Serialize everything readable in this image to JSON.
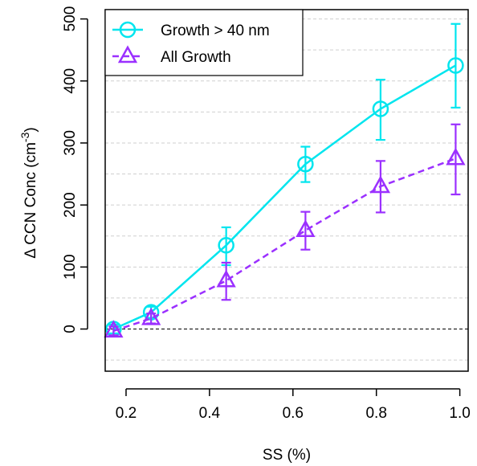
{
  "chart_data": {
    "type": "line",
    "xlabel": "SS (%)",
    "ylabel": {
      "prefix": "Δ CCN Conc (cm",
      "superscript": "-3",
      "suffix": ")"
    },
    "xlim": [
      0.15,
      1.02
    ],
    "ylim": [
      -68,
      515
    ],
    "xticks": [
      0.2,
      0.4,
      0.6,
      0.8,
      1.0
    ],
    "xtick_labels": [
      "0.2",
      "0.4",
      "0.6",
      "0.8",
      "1.0"
    ],
    "yticks": [
      0,
      100,
      200,
      300,
      400,
      500
    ],
    "ytick_labels": [
      "0",
      "100",
      "200",
      "300",
      "400",
      "500"
    ],
    "gridlines_y": [
      -50,
      50,
      150,
      250,
      350,
      450
    ],
    "grid": "horizontal dashed",
    "zero_line": true,
    "legend_placement": "top-left",
    "series": [
      {
        "name": "Growth > 40 nm",
        "color": "#00e5ee",
        "marker": "circle",
        "line_style": "solid",
        "x": [
          0.17,
          0.26,
          0.44,
          0.63,
          0.81,
          0.99
        ],
        "y": [
          0,
          27,
          135,
          266,
          355,
          425
        ],
        "err_low": [
          -7,
          18,
          103,
          237,
          305,
          357
        ],
        "err_high": [
          7,
          36,
          164,
          294,
          402,
          492
        ]
      },
      {
        "name": "All Growth",
        "color": "#9b30ff",
        "marker": "triangle",
        "line_style": "dashed",
        "x": [
          0.17,
          0.26,
          0.44,
          0.63,
          0.81,
          0.99
        ],
        "y": [
          -3,
          17,
          78,
          159,
          230,
          275
        ],
        "err_low": [
          -10,
          9,
          47,
          128,
          188,
          217
        ],
        "err_high": [
          4,
          25,
          107,
          189,
          271,
          330
        ]
      }
    ]
  }
}
